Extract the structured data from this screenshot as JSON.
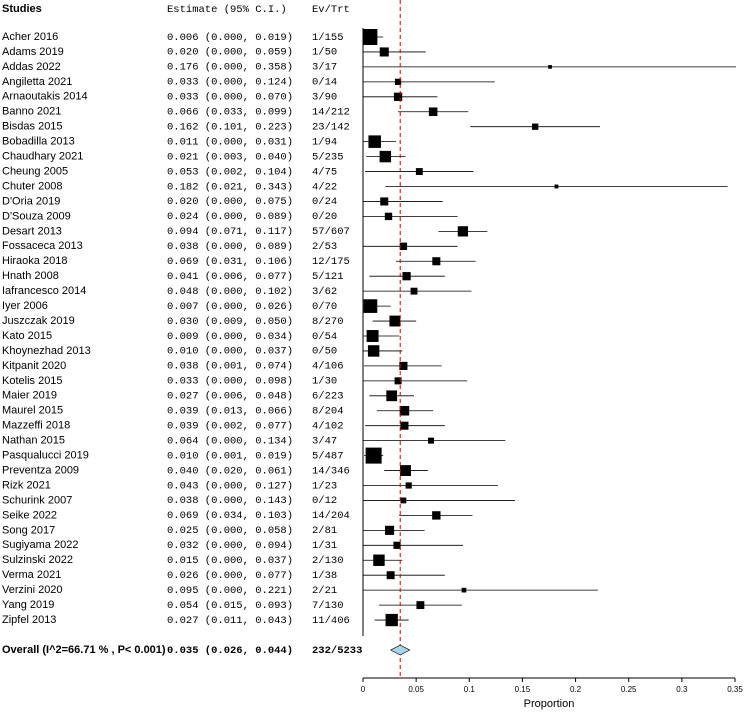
{
  "chart_data": {
    "type": "forest",
    "column_headers": [
      "Studies",
      "Estimate (95% C.I.)",
      "Ev/Trt"
    ],
    "categories": [
      "Acher 2016",
      "Adams 2019",
      "Addas 2022",
      "Angiletta 2021",
      "Arnaoutakis 2014",
      "Banno 2021",
      "Bisdas 2015",
      "Bobadilla 2013",
      "Chaudhary 2021",
      "Cheung 2005",
      "Chuter 2008",
      "D'Oria 2019",
      "D'Souza 2009",
      "Desart 2013",
      "Fossaceca 2013",
      "Hiraoka 2018",
      "Hnath 2008",
      "Iafrancesco 2014",
      "Iyer 2006",
      "Juszczak 2019",
      "Kato 2015",
      "Khoynezhad 2013",
      "Kitpanit 2020",
      "Kotelis 2015",
      "Maier 2019",
      "Maurel 2015",
      "Mazzeffi 2018",
      "Nathan 2015",
      "Pasqualucci 2019",
      "Preventza 2009",
      "Rizk 2021",
      "Schurink 2007",
      "Seike 2022",
      "Song 2017",
      "Sugiyama 2022",
      "Sulzinski 2022",
      "Verma 2021",
      "Verzini 2020",
      "Yang 2019",
      "Zipfel 2013"
    ],
    "values": [
      0.006,
      0.02,
      0.176,
      0.033,
      0.033,
      0.066,
      0.162,
      0.011,
      0.021,
      0.053,
      0.182,
      0.02,
      0.024,
      0.094,
      0.038,
      0.069,
      0.041,
      0.048,
      0.007,
      0.03,
      0.009,
      0.01,
      0.038,
      0.033,
      0.027,
      0.039,
      0.039,
      0.064,
      0.01,
      0.04,
      0.043,
      0.038,
      0.069,
      0.025,
      0.032,
      0.015,
      0.026,
      0.095,
      0.054,
      0.027
    ],
    "lower": [
      0.0,
      0.0,
      0.0,
      0.0,
      0.0,
      0.033,
      0.101,
      0.0,
      0.003,
      0.002,
      0.021,
      0.0,
      0.0,
      0.071,
      0.0,
      0.031,
      0.006,
      0.0,
      0.0,
      0.009,
      0.0,
      0.0,
      0.001,
      0.0,
      0.006,
      0.013,
      0.002,
      0.0,
      0.001,
      0.02,
      0.0,
      0.0,
      0.034,
      0.0,
      0.0,
      0.0,
      0.0,
      0.0,
      0.015,
      0.011
    ],
    "upper": [
      0.019,
      0.059,
      0.358,
      0.124,
      0.07,
      0.099,
      0.223,
      0.031,
      0.04,
      0.104,
      0.343,
      0.075,
      0.089,
      0.117,
      0.089,
      0.106,
      0.077,
      0.102,
      0.026,
      0.05,
      0.034,
      0.037,
      0.074,
      0.098,
      0.048,
      0.066,
      0.077,
      0.134,
      0.019,
      0.061,
      0.127,
      0.143,
      0.103,
      0.058,
      0.094,
      0.037,
      0.077,
      0.221,
      0.093,
      0.043
    ],
    "ci_labels": [
      "0.006 (0.000, 0.019)",
      "0.020 (0.000, 0.059)",
      "0.176 (0.000, 0.358)",
      "0.033 (0.000, 0.124)",
      "0.033 (0.000, 0.070)",
      "0.066 (0.033, 0.099)",
      "0.162 (0.101, 0.223)",
      "0.011 (0.000, 0.031)",
      "0.021 (0.003, 0.040)",
      "0.053 (0.002, 0.104)",
      "0.182 (0.021, 0.343)",
      "0.020 (0.000, 0.075)",
      "0.024 (0.000, 0.089)",
      "0.094 (0.071, 0.117)",
      "0.038 (0.000, 0.089)",
      "0.069 (0.031, 0.106)",
      "0.041 (0.006, 0.077)",
      "0.048 (0.000, 0.102)",
      "0.007 (0.000, 0.026)",
      "0.030 (0.009, 0.050)",
      "0.009 (0.000, 0.034)",
      "0.010 (0.000, 0.037)",
      "0.038 (0.001, 0.074)",
      "0.033 (0.000, 0.098)",
      "0.027 (0.006, 0.048)",
      "0.039 (0.013, 0.066)",
      "0.039 (0.002, 0.077)",
      "0.064 (0.000, 0.134)",
      "0.010 (0.001, 0.019)",
      "0.040 (0.020, 0.061)",
      "0.043 (0.000, 0.127)",
      "0.038 (0.000, 0.143)",
      "0.069 (0.034, 0.103)",
      "0.025 (0.000, 0.058)",
      "0.032 (0.000, 0.094)",
      "0.015 (0.000, 0.037)",
      "0.026 (0.000, 0.077)",
      "0.095 (0.000, 0.221)",
      "0.054 (0.015, 0.093)",
      "0.027 (0.011, 0.043)"
    ],
    "events": [
      "1/155",
      "1/50",
      "3/17",
      "0/14",
      "3/90",
      "14/212",
      "23/142",
      "1/94",
      "5/235",
      "4/75",
      "4/22",
      "0/24",
      "0/20",
      "57/607",
      "2/53",
      "12/175",
      "5/121",
      "3/62",
      "0/70",
      "8/270",
      "0/54",
      "0/50",
      "4/106",
      "1/30",
      "6/223",
      "8/204",
      "4/102",
      "3/47",
      "5/487",
      "14/346",
      "1/23",
      "0/12",
      "14/204",
      "2/81",
      "1/31",
      "2/130",
      "1/38",
      "2/21",
      "7/130",
      "11/406"
    ],
    "overall": {
      "label": "Overall (I^2=66.71 % , P< 0.001)",
      "value": 0.035,
      "lower": 0.026,
      "upper": 0.044,
      "ci_label": "0.035 (0.026, 0.044)",
      "events": "232/5233",
      "color": "#a8d4e6"
    },
    "marker_color": "#000000",
    "reference_line_color": "#cc0000",
    "xlabel": "Proportion",
    "xlim": [
      0,
      0.35
    ],
    "xticks": [
      0,
      0.05,
      0.1,
      0.15,
      0.2,
      0.25,
      0.3,
      0.35
    ]
  }
}
